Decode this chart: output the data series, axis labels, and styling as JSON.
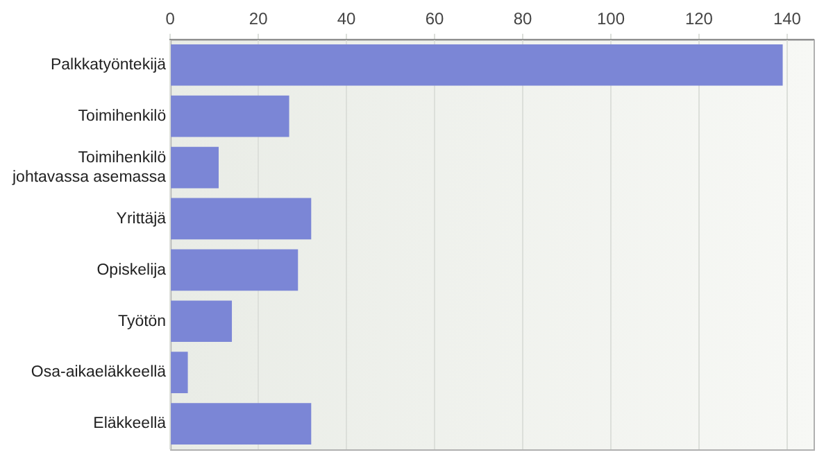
{
  "chart_data": {
    "type": "bar",
    "orientation": "horizontal",
    "categories": [
      "Palkkatyöntekijä",
      "Toimihenkilö",
      "Toimihenkilö johtavassa asemassa",
      "Yrittäjä",
      "Opiskelija",
      "Työtön",
      "Osa-aikaeläkkeellä",
      "Eläkkeellä"
    ],
    "values": [
      139,
      27,
      11,
      32,
      29,
      14,
      4,
      32
    ],
    "color": "#7b86d6",
    "xlim": [
      0,
      146
    ],
    "xticks": [
      0,
      20,
      40,
      60,
      80,
      100,
      120,
      140
    ],
    "grid": "x"
  }
}
